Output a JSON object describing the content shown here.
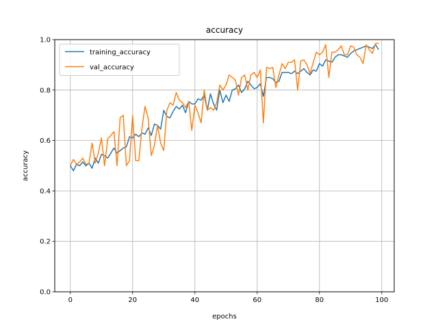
{
  "chart_data": {
    "type": "line",
    "title": "accuracy",
    "xlabel": "epochs",
    "ylabel": "accuracy",
    "xlim": [
      -5,
      104
    ],
    "ylim": [
      0.0,
      1.0
    ],
    "xticks": [
      0,
      20,
      40,
      60,
      80,
      100
    ],
    "yticks": [
      0.0,
      0.2,
      0.4,
      0.6,
      0.8,
      1.0
    ],
    "xtick_labels": [
      "0",
      "20",
      "40",
      "60",
      "80",
      "100"
    ],
    "ytick_labels": [
      "0.0",
      "0.2",
      "0.4",
      "0.6",
      "0.8",
      "1.0"
    ],
    "grid": true,
    "legend_position": "top-left",
    "series": [
      {
        "name": "training_accuracy",
        "color": "#1f77b4",
        "values": [
          0.5,
          0.48,
          0.505,
          0.5,
          0.515,
          0.5,
          0.51,
          0.49,
          0.53,
          0.51,
          0.545,
          0.54,
          0.53,
          0.55,
          0.57,
          0.55,
          0.56,
          0.57,
          0.575,
          0.615,
          0.61,
          0.625,
          0.615,
          0.63,
          0.625,
          0.65,
          0.62,
          0.665,
          0.66,
          0.645,
          0.72,
          0.695,
          0.69,
          0.715,
          0.735,
          0.725,
          0.74,
          0.71,
          0.755,
          0.745,
          0.745,
          0.765,
          0.76,
          0.78,
          0.72,
          0.785,
          0.745,
          0.72,
          0.8,
          0.75,
          0.78,
          0.755,
          0.8,
          0.805,
          0.82,
          0.79,
          0.805,
          0.835,
          0.82,
          0.805,
          0.81,
          0.825,
          0.775,
          0.85,
          0.85,
          0.845,
          0.83,
          0.835,
          0.87,
          0.87,
          0.87,
          0.865,
          0.875,
          0.865,
          0.875,
          0.885,
          0.87,
          0.86,
          0.88,
          0.875,
          0.905,
          0.895,
          0.92,
          0.915,
          0.91,
          0.93,
          0.94,
          0.94,
          0.935,
          0.93,
          0.945,
          0.955,
          0.96,
          0.965,
          0.97,
          0.975,
          0.97,
          0.965,
          0.98,
          0.96
        ]
      },
      {
        "name": "val_accuracy",
        "color": "#ff7f0e",
        "values": [
          0.5,
          0.525,
          0.505,
          0.515,
          0.53,
          0.505,
          0.51,
          0.59,
          0.51,
          0.55,
          0.61,
          0.5,
          0.605,
          0.62,
          0.635,
          0.5,
          0.69,
          0.7,
          0.5,
          0.52,
          0.7,
          0.52,
          0.52,
          0.65,
          0.735,
          0.69,
          0.54,
          0.58,
          0.66,
          0.59,
          0.56,
          0.72,
          0.75,
          0.74,
          0.79,
          0.76,
          0.75,
          0.73,
          0.755,
          0.64,
          0.74,
          0.71,
          0.67,
          0.8,
          0.72,
          0.73,
          0.72,
          0.75,
          0.82,
          0.8,
          0.82,
          0.86,
          0.85,
          0.84,
          0.78,
          0.85,
          0.86,
          0.8,
          0.86,
          0.87,
          0.85,
          0.88,
          0.67,
          0.89,
          0.885,
          0.89,
          0.81,
          0.86,
          0.905,
          0.885,
          0.91,
          0.91,
          0.92,
          0.8,
          0.915,
          0.92,
          0.9,
          0.865,
          0.91,
          0.95,
          0.94,
          0.95,
          0.98,
          0.85,
          0.95,
          0.95,
          0.96,
          0.975,
          0.94,
          0.94,
          0.975,
          0.97,
          0.94,
          0.93,
          0.905,
          0.98,
          0.96,
          0.945,
          0.985,
          0.985
        ]
      }
    ]
  }
}
